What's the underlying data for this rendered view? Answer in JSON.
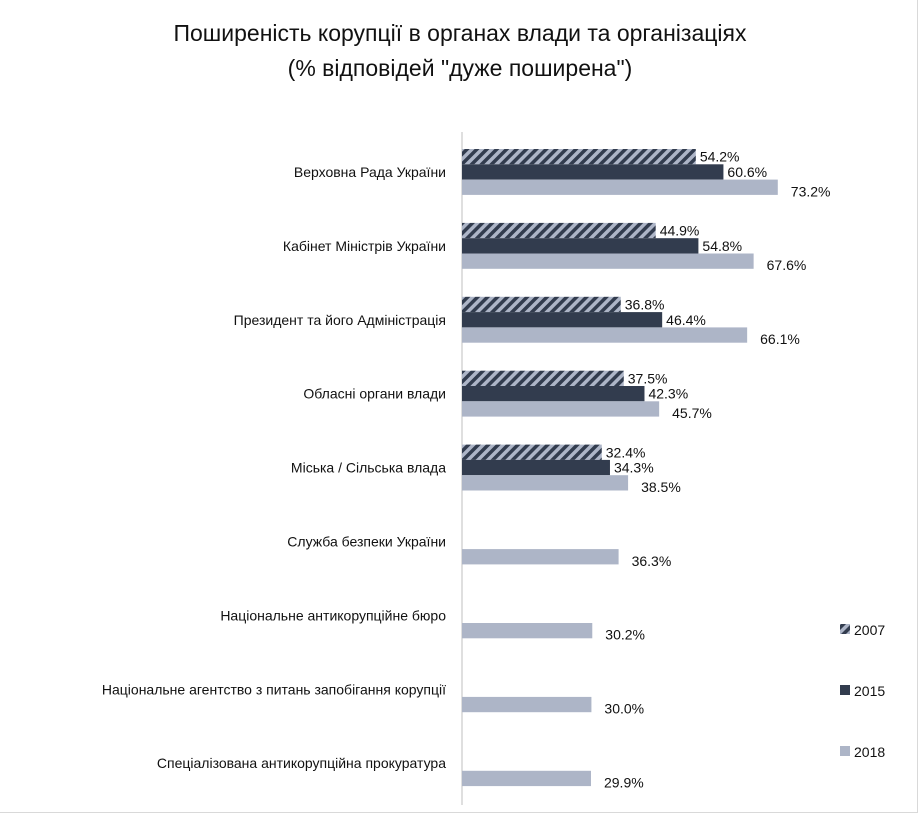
{
  "chart_data": {
    "type": "bar",
    "orientation": "horizontal",
    "title": "Поширеність корупції в органах влади та організаціях",
    "subtitle": "(% відповідей \"дуже поширена\")",
    "categories": [
      "Верховна Рада України",
      "Кабінет Міністрів України",
      "Президент та його Адміністрація",
      "Обласні органи влади",
      "Міська / Сільська влада",
      "Служба безпеки України",
      "Національне антикорупційне бюро",
      "Національне агентство з питань запобігання корупції",
      "Спеціалізована антикорупційна прокуратура"
    ],
    "series": [
      {
        "name": "2007",
        "color": "#adb5c7",
        "pattern": "hatched",
        "values": [
          54.2,
          44.9,
          36.8,
          37.5,
          32.4,
          null,
          null,
          null,
          null
        ]
      },
      {
        "name": "2015",
        "color": "#323c4e",
        "values": [
          60.6,
          54.8,
          46.4,
          42.3,
          34.3,
          null,
          null,
          null,
          null
        ]
      },
      {
        "name": "2018",
        "color": "#adb5c7",
        "values": [
          73.2,
          67.6,
          66.1,
          45.7,
          38.5,
          36.3,
          30.2,
          30.0,
          29.9
        ]
      }
    ],
    "value_format": "%",
    "legend": "right",
    "grid": false
  }
}
